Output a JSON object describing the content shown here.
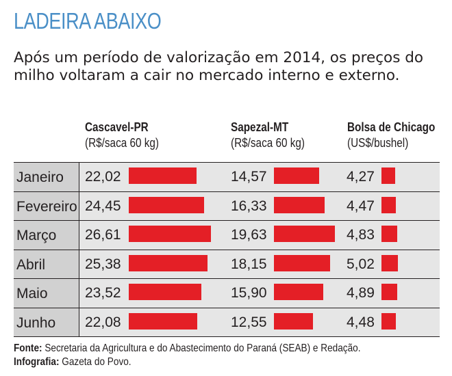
{
  "title": "LADEIRA ABAIXO",
  "subtitle": "Após um período de valorização em 2014, os preços do milho voltaram a cair no mercado interno e externo.",
  "colors": {
    "title": "#4a8fc7",
    "bar": "#e41f26",
    "row": "#e6e6e6",
    "label_cell": "#d1d1d1"
  },
  "chart_data": {
    "type": "bar",
    "orientation": "horizontal",
    "categories": [
      "Janeiro",
      "Fevereiro",
      "Março",
      "Abril",
      "Maio",
      "Junho"
    ],
    "series": [
      {
        "name": "Cascavel-PR",
        "unit": "(R$/saca 60 kg)",
        "values": [
          22.02,
          24.45,
          26.61,
          25.38,
          23.52,
          22.08
        ],
        "labels": [
          "22,02",
          "24,45",
          "26,61",
          "25,38",
          "23,52",
          "22,08"
        ],
        "max_value": 26.61
      },
      {
        "name": "Sapezal-MT",
        "unit": "(R$/saca 60 kg)",
        "values": [
          14.57,
          16.33,
          19.63,
          18.15,
          15.9,
          12.55
        ],
        "labels": [
          "14,57",
          "16,33",
          "19,63",
          "18,15",
          "15,90",
          "12,55"
        ],
        "max_value": 19.63
      },
      {
        "name": "Bolsa de Chicago",
        "unit": "(US$/bushel)",
        "values": [
          4.27,
          4.47,
          4.83,
          5.02,
          4.89,
          4.48
        ],
        "labels": [
          "4,27",
          "4,47",
          "4,83",
          "5,02",
          "4,89",
          "4,48"
        ],
        "max_value": 5.02
      }
    ]
  },
  "footer": {
    "source_label": "Fonte:",
    "source_text": "Secretaria da Agricultura e do Abastecimento do Paraná (SEAB) e Redação.",
    "credit_label": "Infografia:",
    "credit_text": "Gazeta do Povo."
  }
}
